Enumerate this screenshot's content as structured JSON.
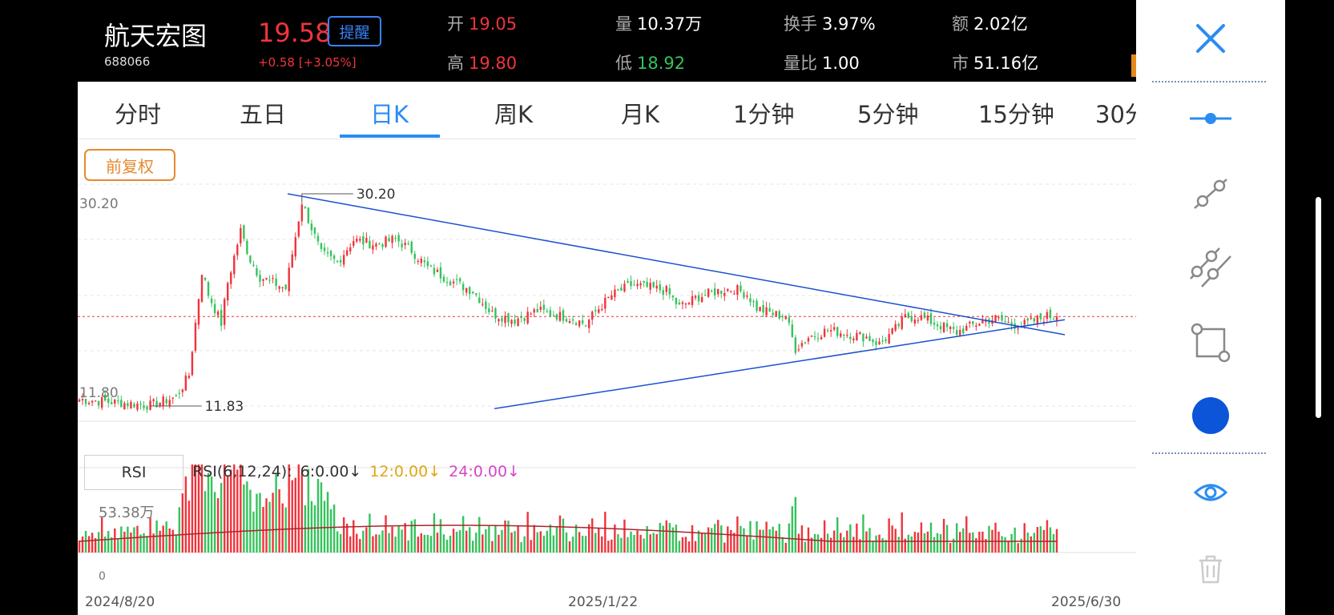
{
  "stock": {
    "name": "航天宏图",
    "code": "688066",
    "price": "19.58",
    "alert_label": "提醒",
    "change": "+0.58  [+3.05%]"
  },
  "stats": {
    "open": {
      "label": "开",
      "value": "19.05"
    },
    "high": {
      "label": "高",
      "value": "19.80"
    },
    "volume": {
      "label": "量",
      "value": "10.37万"
    },
    "low": {
      "label": "低",
      "value": "18.92"
    },
    "turnover": {
      "label": "换手",
      "value": "3.97%"
    },
    "vol_ratio": {
      "label": "量比",
      "value": "1.00"
    },
    "amount": {
      "label": "额",
      "value": "2.02亿"
    },
    "market_cap": {
      "label": "市",
      "value": "51.16亿"
    }
  },
  "tabs": [
    "分时",
    "五日",
    "日K",
    "周K",
    "月K",
    "1分钟",
    "5分钟",
    "15分钟",
    "30分"
  ],
  "active_tab": "日K",
  "adjust_label": "前复权",
  "price_axis": {
    "top_label": "30.20",
    "low_label": "11.80"
  },
  "annotations": {
    "high": "30.20",
    "low": "11.83"
  },
  "rsi": {
    "button_label": "RSI",
    "params_label": "RSI(6,12,24):",
    "rsi6": "6:0.00↓",
    "rsi12": "12:0.00↓",
    "rsi24": "24:0.00↓",
    "colors": {
      "rsi6": "#333333",
      "rsi12": "#e0a614",
      "rsi24": "#d546c9"
    }
  },
  "volume_axis": {
    "max_label": "53.38万",
    "zero_label": "0"
  },
  "dates": {
    "start": "2024/8/20",
    "mid": "2025/1/22",
    "end": "2025/6/30"
  },
  "colors": {
    "up": "#f0343c",
    "down": "#35c35c",
    "accent": "#2b8cf2",
    "trendline": "#1a4fd0",
    "draw_color": "#0c55d9"
  },
  "toolbar_icons": [
    "close-icon",
    "horizontal-line-icon",
    "line-segment-icon",
    "parallel-channel-icon",
    "rectangle-icon",
    "color-picker",
    "visibility-eye-icon",
    "delete-trash-icon"
  ],
  "chart_data": {
    "type": "candlestick",
    "title": "",
    "x_range": [
      "2024/8/20",
      "2025/6/30"
    ],
    "y_range": [
      11.83,
      30.2
    ],
    "max_price": 30.2,
    "min_price": 11.83,
    "last_close": 19.58,
    "waypoints": [
      {
        "i": 0,
        "close": 12.4
      },
      {
        "i": 22,
        "close": 11.9
      },
      {
        "i": 30,
        "close": 12.6
      },
      {
        "i": 34,
        "close": 14.5
      },
      {
        "i": 36,
        "close": 19.0
      },
      {
        "i": 38,
        "close": 23.5
      },
      {
        "i": 40,
        "close": 21.5
      },
      {
        "i": 44,
        "close": 19.0
      },
      {
        "i": 46,
        "close": 22.5
      },
      {
        "i": 50,
        "close": 27.0
      },
      {
        "i": 53,
        "close": 24.5
      },
      {
        "i": 56,
        "close": 23.0
      },
      {
        "i": 64,
        "close": 22.0
      },
      {
        "i": 69,
        "close": 29.5
      },
      {
        "i": 75,
        "close": 25.0
      },
      {
        "i": 80,
        "close": 24.3
      },
      {
        "i": 85,
        "close": 26.2
      },
      {
        "i": 92,
        "close": 25.8
      },
      {
        "i": 98,
        "close": 26.3
      },
      {
        "i": 103,
        "close": 25.3
      },
      {
        "i": 108,
        "close": 23.8
      },
      {
        "i": 115,
        "close": 22.7
      },
      {
        "i": 122,
        "close": 21.8
      },
      {
        "i": 128,
        "close": 19.8
      },
      {
        "i": 135,
        "close": 19.3
      },
      {
        "i": 142,
        "close": 20.1
      },
      {
        "i": 148,
        "close": 19.7
      },
      {
        "i": 153,
        "close": 19.4
      },
      {
        "i": 157,
        "close": 18.9
      },
      {
        "i": 160,
        "close": 20.0
      },
      {
        "i": 165,
        "close": 21.4
      },
      {
        "i": 171,
        "close": 22.3
      },
      {
        "i": 176,
        "close": 22.1
      },
      {
        "i": 182,
        "close": 21.8
      },
      {
        "i": 186,
        "close": 20.4
      },
      {
        "i": 192,
        "close": 21.3
      },
      {
        "i": 198,
        "close": 21.8
      },
      {
        "i": 203,
        "close": 22.0
      },
      {
        "i": 207,
        "close": 21.5
      },
      {
        "i": 210,
        "close": 20.3
      },
      {
        "i": 215,
        "close": 19.8
      },
      {
        "i": 219,
        "close": 19.6
      },
      {
        "i": 222,
        "close": 16.8
      },
      {
        "i": 226,
        "close": 17.8
      },
      {
        "i": 232,
        "close": 18.4
      },
      {
        "i": 238,
        "close": 18.1
      },
      {
        "i": 244,
        "close": 17.8
      },
      {
        "i": 248,
        "close": 17.2
      },
      {
        "i": 252,
        "close": 18.2
      },
      {
        "i": 256,
        "close": 19.5
      },
      {
        "i": 260,
        "close": 19.6
      },
      {
        "i": 266,
        "close": 18.9
      },
      {
        "i": 272,
        "close": 18.2
      },
      {
        "i": 276,
        "close": 18.7
      },
      {
        "i": 280,
        "close": 19.2
      },
      {
        "i": 284,
        "close": 19.4
      },
      {
        "i": 288,
        "close": 19.0
      },
      {
        "i": 292,
        "close": 18.8
      },
      {
        "i": 296,
        "close": 19.2
      },
      {
        "i": 300,
        "close": 19.6
      },
      {
        "i": 303,
        "close": 19.58
      }
    ],
    "volume_max": "53.38万",
    "trendlines": [
      {
        "name": "resistance",
        "from": {
          "date": "2024/10/8",
          "price": 30.2
        },
        "to": {
          "date": "2025/6/30",
          "price": 18.0
        }
      },
      {
        "name": "support",
        "from": {
          "date": "2024/12",
          "price": 11.6
        },
        "to": {
          "date": "2025/6/30",
          "price": 19.3
        }
      }
    ]
  }
}
